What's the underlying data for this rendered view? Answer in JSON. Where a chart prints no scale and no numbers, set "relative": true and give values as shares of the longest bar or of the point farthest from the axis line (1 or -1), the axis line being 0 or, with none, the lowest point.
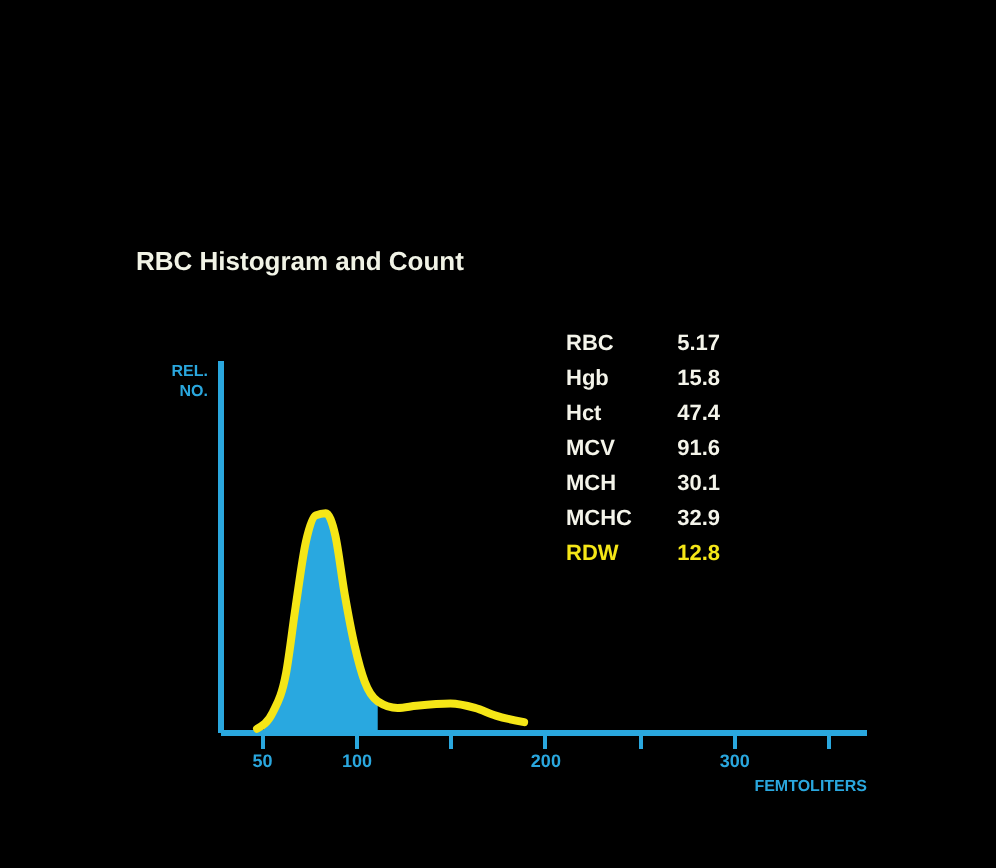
{
  "chart_data": {
    "type": "line",
    "title": "RBC Histogram and Count",
    "xlabel": "FEMTOLITERS",
    "relative": true,
    "xlim": [
      28,
      370
    ],
    "xticks": [
      50,
      100,
      {
        "value": 150,
        "label": null
      },
      200,
      {
        "value": 250,
        "label": null
      },
      300,
      {
        "value": 350,
        "label": null
      }
    ],
    "grid": false,
    "series": [
      {
        "type": "area",
        "color": "#29a8e0",
        "x": [
          51,
          56,
          63,
          68,
          73.5,
          78.7,
          84,
          89,
          94,
          99.4,
          104.6,
          111.5
        ],
        "values": [
          0.04,
          0.09,
          0.27,
          0.57,
          0.87,
          0.99,
          1.0,
          0.9,
          0.63,
          0.39,
          0.23,
          0.14
        ]
      },
      {
        "type": "line",
        "color": "#f5e617",
        "x": [
          47.6,
          56,
          63,
          68,
          73.5,
          78.7,
          84,
          89,
          94,
          99.4,
          104.6,
          111.5,
          122,
          132,
          150,
          163,
          174,
          189
        ],
        "values": [
          0.015,
          0.09,
          0.27,
          0.57,
          0.87,
          0.99,
          1.0,
          0.9,
          0.63,
          0.39,
          0.23,
          0.14,
          0.11,
          0.12,
          0.13,
          0.11,
          0.075,
          0.045
        ]
      }
    ],
    "annotations": [
      "REL. NO.",
      "RBC 5.17",
      "Hgb 15.8",
      "Hct 47.4",
      "MCV 91.6",
      "MCH 30.1",
      "MCHC 32.9",
      "RDW 12.8"
    ]
  }
}
